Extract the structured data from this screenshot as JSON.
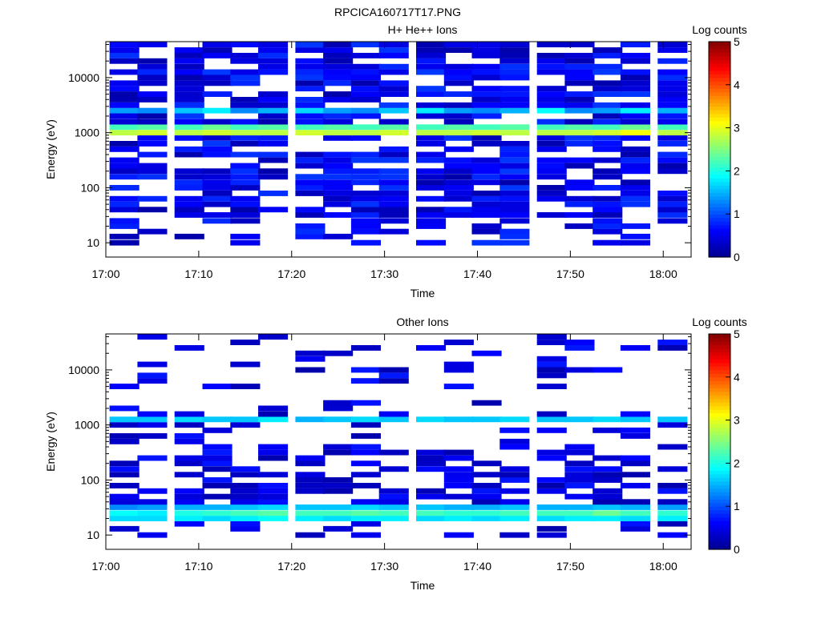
{
  "figure_title": "RPCICA160717T17.PNG",
  "colors": {
    "colormap": [
      "#00008f",
      "#0000ff",
      "#0080ff",
      "#00ffff",
      "#80ff80",
      "#ffff00",
      "#ff8000",
      "#ff0000",
      "#800000"
    ],
    "axis": "#000000",
    "background": "#ffffff"
  },
  "chart_data": [
    {
      "type": "heatmap",
      "title": "H+ He++ Ions",
      "xlabel": "Time",
      "ylabel": "Energy (eV)",
      "yscale": "log",
      "ylim": [
        5.5,
        45000
      ],
      "xlim": [
        "17:00",
        "18:03"
      ],
      "x_ticks": [
        "17:00",
        "17:10",
        "17:20",
        "17:30",
        "17:40",
        "17:50",
        "18:00"
      ],
      "y_ticks": [
        "10",
        "100",
        "1000",
        "10000"
      ],
      "colorbar": {
        "label": "Log counts",
        "range": [
          0,
          5
        ],
        "ticks": [
          "0",
          "1",
          "2",
          "3",
          "4",
          "5"
        ]
      },
      "time_bins": [
        "17:02",
        "17:05",
        "17:09",
        "17:12",
        "17:15",
        "17:18",
        "17:22",
        "17:25",
        "17:28",
        "17:31",
        "17:35",
        "17:38",
        "17:41",
        "17:44",
        "17:48",
        "17:51",
        "17:54",
        "17:57",
        "18:01"
      ],
      "energy_bins_ev": [
        10,
        13,
        16,
        20,
        25,
        32,
        40,
        50,
        63,
        79,
        100,
        125,
        158,
        200,
        250,
        316,
        400,
        500,
        630,
        800,
        1000,
        1260,
        1580,
        2000,
        2510,
        3160,
        3980,
        5010,
        6310,
        7940,
        10000,
        12600,
        15800,
        20000,
        25100,
        31600,
        39800
      ],
      "log_counts_by_energy": {
        "1000": [
          2.8,
          2.9,
          2.8,
          2.9,
          2.8,
          2.8,
          2.9,
          2.8,
          2.8,
          2.9,
          2.8,
          2.8,
          2.9,
          2.8,
          2.8,
          2.8,
          2.9,
          3.1,
          2.8
        ],
        "1260": [
          2.2,
          2.3,
          2.2,
          2.4,
          2.2,
          2.3,
          2.2,
          2.3,
          2.2,
          2.3,
          2.2,
          2.3,
          2.2,
          2.3,
          2.2,
          2.3,
          2.2,
          2.4,
          2.2
        ],
        "2510": [
          1.4,
          1.3,
          1.6,
          1.8,
          1.3,
          1.5,
          1.7,
          1.4,
          1.3,
          1.6,
          1.8,
          1.4,
          1.3,
          1.5,
          1.9,
          1.3,
          1.4,
          1.8,
          1.5
        ],
        "12600": [
          0.5,
          0.8,
          0.6,
          0.9,
          0.5,
          0.7,
          0.8,
          0.6,
          0.7,
          0.5,
          0.9,
          0.6,
          0.7,
          0.8,
          0.5,
          0.6,
          0.9,
          0.7,
          0.6
        ]
      }
    },
    {
      "type": "heatmap",
      "title": "Other Ions",
      "xlabel": "Time",
      "ylabel": "Energy (eV)",
      "yscale": "log",
      "ylim": [
        5.5,
        45000
      ],
      "xlim": [
        "17:00",
        "18:03"
      ],
      "x_ticks": [
        "17:00",
        "17:10",
        "17:20",
        "17:30",
        "17:40",
        "17:50",
        "18:00"
      ],
      "y_ticks": [
        "10",
        "100",
        "1000",
        "10000"
      ],
      "colorbar": {
        "label": "Log counts",
        "range": [
          0,
          5
        ],
        "ticks": [
          "0",
          "1",
          "2",
          "3",
          "4",
          "5"
        ]
      },
      "time_bins": [
        "17:02",
        "17:05",
        "17:09",
        "17:12",
        "17:15",
        "17:18",
        "17:22",
        "17:25",
        "17:28",
        "17:31",
        "17:35",
        "17:38",
        "17:41",
        "17:44",
        "17:48",
        "17:51",
        "17:54",
        "17:57",
        "18:01"
      ],
      "energy_bins_ev": [
        10,
        13,
        16,
        20,
        25,
        32,
        40,
        50,
        63,
        79,
        100,
        125,
        158,
        200,
        250,
        316,
        400,
        500,
        630,
        800,
        1000,
        1260,
        1580,
        2000,
        2510,
        3160,
        3980,
        5010,
        6310,
        7940,
        10000,
        12600,
        15800,
        20000,
        25100,
        31600,
        39800
      ],
      "log_counts_by_energy": {
        "20": [
          1.7,
          1.7,
          1.8,
          1.7,
          1.8,
          1.9,
          1.8,
          1.7,
          1.8,
          1.8,
          1.7,
          1.8,
          1.7,
          1.8,
          1.7,
          1.8,
          1.8,
          1.7,
          1.8
        ],
        "25": [
          1.9,
          1.8,
          2.0,
          2.1,
          2.2,
          2.3,
          2.2,
          2.2,
          2.3,
          2.2,
          2.2,
          2.1,
          2.1,
          2.2,
          2.2,
          2.2,
          2.4,
          2.2,
          2.1
        ],
        "32": [
          1.3,
          1.4,
          1.5,
          1.5,
          1.6,
          1.7,
          1.6,
          1.6,
          1.7,
          1.6,
          1.6,
          1.5,
          1.5,
          1.6,
          1.5,
          1.5,
          1.6,
          1.5,
          1.4
        ],
        "1260": [
          1.6,
          1.6,
          1.7,
          1.6,
          1.6,
          1.8,
          1.5,
          1.6,
          1.7,
          1.6,
          1.7,
          1.6,
          1.6,
          1.7,
          1.6,
          1.6,
          1.7,
          1.6,
          1.6
        ]
      }
    }
  ]
}
